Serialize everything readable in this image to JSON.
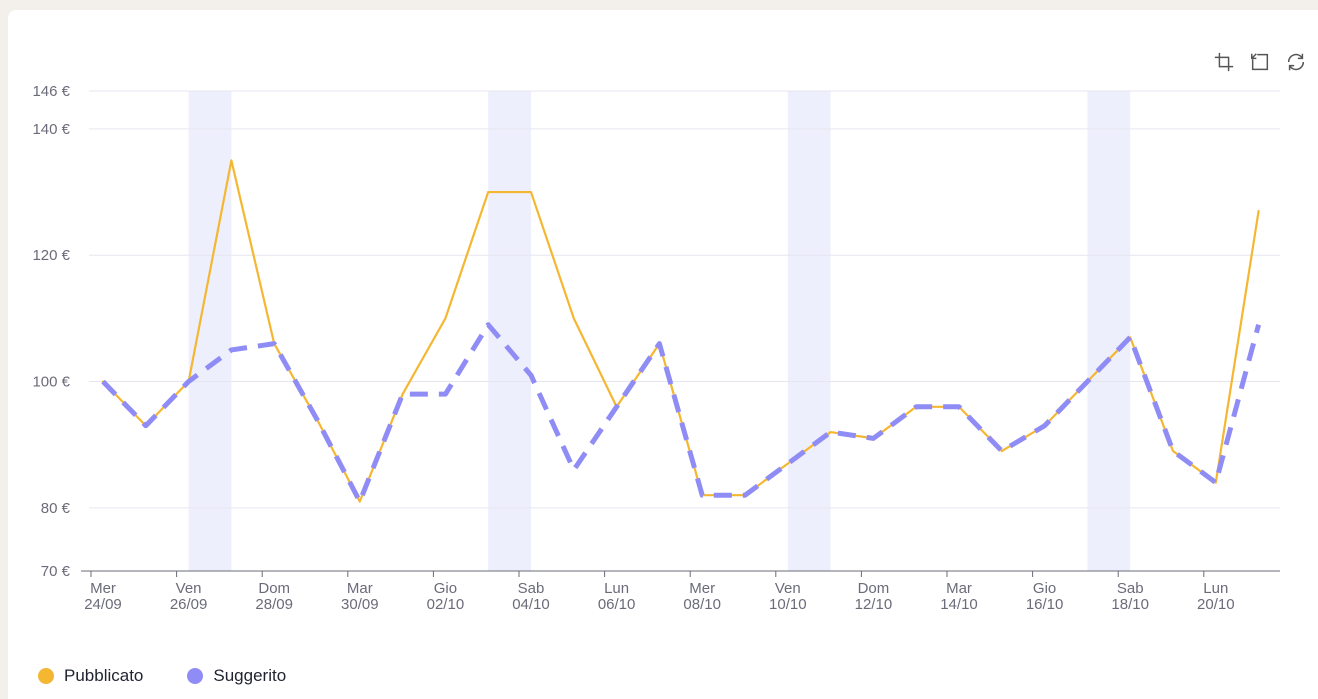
{
  "toolbar": {
    "icons": [
      "crop-zoom-icon",
      "zoom-reset-icon",
      "refresh-icon"
    ]
  },
  "chart_data": {
    "type": "line",
    "title": "",
    "xlabel": "",
    "ylabel": "",
    "ylim": [
      70,
      146
    ],
    "yticks": [
      {
        "value": 146,
        "label": "146 €"
      },
      {
        "value": 140,
        "label": "140 €"
      },
      {
        "value": 120,
        "label": "120 €"
      },
      {
        "value": 100,
        "label": "100 €"
      },
      {
        "value": 80,
        "label": "80 €"
      },
      {
        "value": 70,
        "label": "70 €"
      }
    ],
    "xticks": [
      {
        "day": "Mer",
        "date": "24/09"
      },
      {
        "day": "Ven",
        "date": "26/09"
      },
      {
        "day": "Dom",
        "date": "28/09"
      },
      {
        "day": "Mar",
        "date": "30/09"
      },
      {
        "day": "Gio",
        "date": "02/10"
      },
      {
        "day": "Sab",
        "date": "04/10"
      },
      {
        "day": "Lun",
        "date": "06/10"
      },
      {
        "day": "Mer",
        "date": "08/10"
      },
      {
        "day": "Ven",
        "date": "10/10"
      },
      {
        "day": "Dom",
        "date": "12/10"
      },
      {
        "day": "Mar",
        "date": "14/10"
      },
      {
        "day": "Gio",
        "date": "16/10"
      },
      {
        "day": "Sab",
        "date": "18/10"
      },
      {
        "day": "Lun",
        "date": "20/10"
      }
    ],
    "x": [
      "24/09",
      "25/09",
      "26/09",
      "27/09",
      "28/09",
      "29/09",
      "30/09",
      "01/10",
      "02/10",
      "03/10",
      "04/10",
      "05/10",
      "06/10",
      "07/10",
      "08/10",
      "09/10",
      "10/10",
      "11/10",
      "12/10",
      "13/10",
      "14/10",
      "15/10",
      "16/10",
      "17/10",
      "18/10",
      "19/10",
      "20/10",
      "21/10"
    ],
    "weekend_highlights": [
      [
        "26/09",
        "27/09"
      ],
      [
        "03/10",
        "04/10"
      ],
      [
        "10/10",
        "11/10"
      ],
      [
        "17/10",
        "18/10"
      ]
    ],
    "series": [
      {
        "name": "Pubblicato",
        "color": "#f5b731",
        "style": "solid",
        "values": [
          100,
          93,
          100,
          135,
          106,
          94,
          81,
          98,
          110,
          130,
          130,
          110,
          96,
          106,
          82,
          82,
          87,
          92,
          91,
          96,
          96,
          89,
          93,
          100,
          107,
          89,
          84,
          127
        ]
      },
      {
        "name": "Suggerito",
        "color": "#8f8df5",
        "style": "dashed",
        "values": [
          100,
          93,
          100,
          105,
          106,
          94,
          81,
          98,
          98,
          109,
          101,
          86,
          96,
          106,
          82,
          82,
          87,
          92,
          91,
          96,
          96,
          89,
          93,
          100,
          107,
          89,
          84,
          109
        ]
      }
    ],
    "grid": true,
    "legend": "bottom-left"
  }
}
